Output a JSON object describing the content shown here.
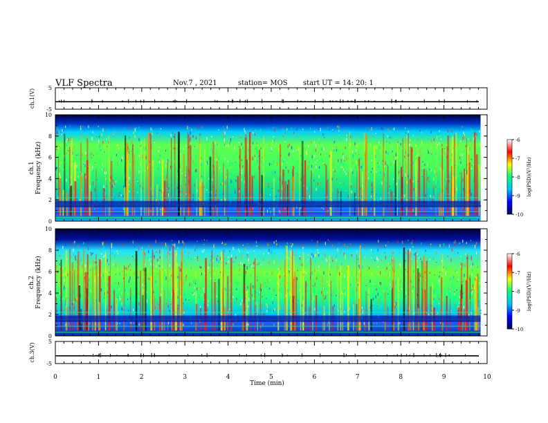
{
  "header": {
    "title": "VLF Spectra",
    "date": "Nov.7 , 2021",
    "station": "station= MOS",
    "start_ut": "start UT = 14: 20: 1"
  },
  "chart_data": [
    {
      "type": "line",
      "panel": "ch1-waveform",
      "ylabel": "ch.1(V)",
      "ylim": [
        -5,
        5
      ],
      "ytick_labels": [
        "5",
        "-5"
      ],
      "xlim": [
        0,
        10
      ],
      "baseline": -1.5,
      "color": "#000000"
    },
    {
      "type": "heatmap",
      "panel": "ch1-spectrogram",
      "ylabel_lines": [
        "ch.1",
        "Frequency (kHz)"
      ],
      "ylim": [
        0,
        10
      ],
      "ytick_labels": [
        "0",
        "2",
        "4",
        "6",
        "8",
        "10"
      ],
      "xlim": [
        0,
        10
      ],
      "data_extent_min": 9.85,
      "colorbar": {
        "label": "log(PSD)(V²/Hz)",
        "range": [
          -10,
          -6
        ],
        "tick_labels": [
          "-6",
          "-7",
          "-8",
          "-9",
          "-10"
        ],
        "colors": [
          "#000060",
          "#0000ff",
          "#00c0ff",
          "#00ff80",
          "#ffff00",
          "#ff0000",
          "#ffffff"
        ]
      }
    },
    {
      "type": "heatmap",
      "panel": "ch2-spectrogram",
      "ylabel_lines": [
        "ch.2",
        "Frequency (kHz)"
      ],
      "ylim": [
        0,
        10
      ],
      "ytick_labels": [
        "0",
        "2",
        "4",
        "6",
        "8",
        "10"
      ],
      "xlim": [
        0,
        10
      ],
      "data_extent_min": 9.85,
      "colorbar": {
        "label": "log(PSD)(V²/Hz)",
        "range": [
          -10,
          -6
        ],
        "tick_labels": [
          "-6",
          "-7",
          "-8",
          "-9",
          "-10"
        ],
        "colors": [
          "#000060",
          "#0000ff",
          "#00c0ff",
          "#00ff80",
          "#ffff00",
          "#ff0000",
          "#ffffff"
        ]
      }
    },
    {
      "type": "line",
      "panel": "ch3-waveform",
      "ylabel": "ch.3(V)",
      "ylim": [
        -5,
        5
      ],
      "ytick_labels": [
        "5",
        "-5"
      ],
      "xlim": [
        0,
        10
      ],
      "baseline": -1.5,
      "color": "#000000"
    }
  ],
  "xaxis": {
    "label": "Time (min)",
    "tick_labels": [
      "0",
      "1",
      "2",
      "3",
      "4",
      "5",
      "6",
      "7",
      "8",
      "9",
      "10"
    ]
  }
}
